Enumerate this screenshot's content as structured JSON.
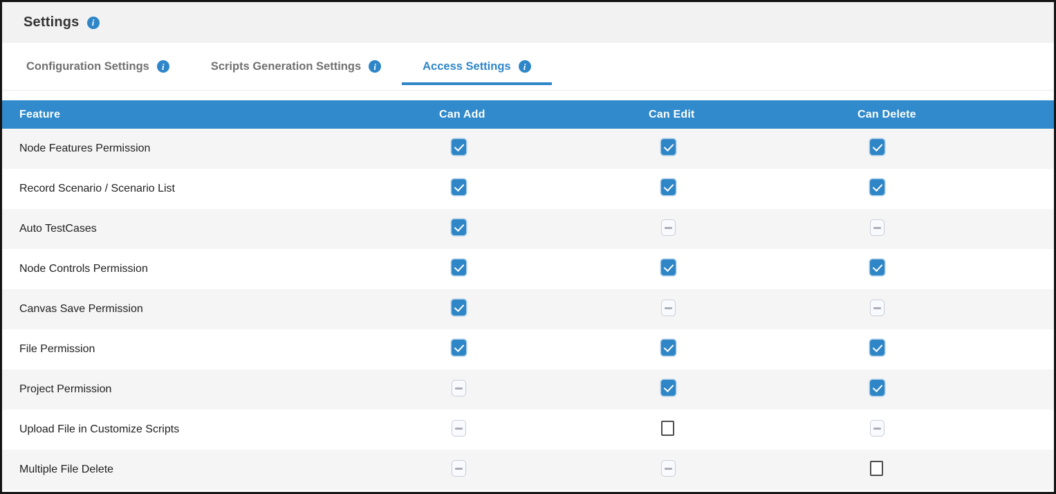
{
  "page_title": "Settings",
  "title_info_icon": "i",
  "tabs": [
    {
      "label": "Configuration Settings",
      "active": false
    },
    {
      "label": "Scripts Generation Settings",
      "active": false
    },
    {
      "label": "Access Settings",
      "active": true
    }
  ],
  "table": {
    "columns": [
      "Feature",
      "Can Add",
      "Can Edit",
      "Can Delete"
    ],
    "rows": [
      {
        "feature": "Node Features Permission",
        "can_add": "checked",
        "can_edit": "checked",
        "can_delete": "checked"
      },
      {
        "feature": "Record Scenario / Scenario List",
        "can_add": "checked",
        "can_edit": "checked",
        "can_delete": "checked"
      },
      {
        "feature": "Auto TestCases",
        "can_add": "checked",
        "can_edit": "indeterminate",
        "can_delete": "indeterminate"
      },
      {
        "feature": "Node Controls Permission",
        "can_add": "checked",
        "can_edit": "checked",
        "can_delete": "checked"
      },
      {
        "feature": "Canvas Save Permission",
        "can_add": "checked",
        "can_edit": "indeterminate",
        "can_delete": "indeterminate"
      },
      {
        "feature": "File Permission",
        "can_add": "checked",
        "can_edit": "checked",
        "can_delete": "checked"
      },
      {
        "feature": "Project Permission",
        "can_add": "indeterminate",
        "can_edit": "checked",
        "can_delete": "checked"
      },
      {
        "feature": "Upload File in Customize Scripts",
        "can_add": "indeterminate",
        "can_edit": "unchecked",
        "can_delete": "indeterminate"
      },
      {
        "feature": "Multiple File Delete",
        "can_add": "indeterminate",
        "can_edit": "indeterminate",
        "can_delete": "unchecked"
      }
    ]
  },
  "colors": {
    "accent_blue": "#2e86c8",
    "table_header_blue": "#308acb",
    "row_stripe_gray": "#f5f5f5",
    "titlebar_gray": "#f2f2f2",
    "checkbox_checked_blue": "#2f86c6"
  }
}
